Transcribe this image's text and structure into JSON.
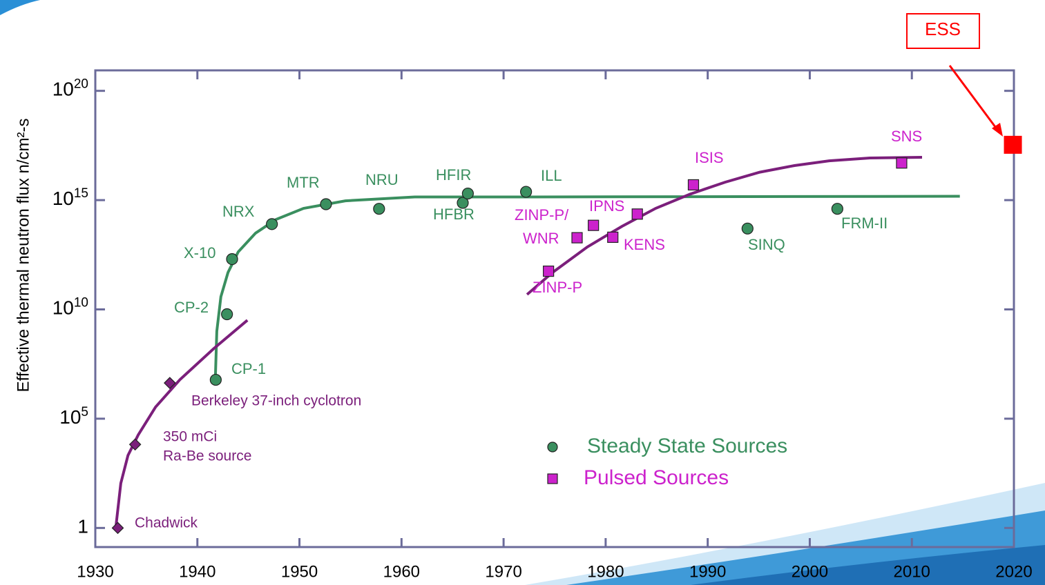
{
  "chart_data": {
    "type": "scatter",
    "ylabel": "Effective thermal neutron flux n/cm²-s",
    "xlim": [
      1930,
      2020
    ],
    "ylim": [
      0.1,
      1e+21
    ],
    "log_y": true,
    "xticks": [
      1930,
      1940,
      1950,
      1960,
      1970,
      1980,
      1990,
      2000,
      2010,
      2020
    ],
    "yticks": [
      1,
      {
        "value": 100000,
        "label": "10",
        "sup": "5"
      },
      {
        "value": 10000000000,
        "label": "10",
        "sup": "10"
      },
      {
        "value": 1000000000000000.0,
        "label": "10",
        "sup": "15"
      },
      {
        "value": 1e+20,
        "label": "10",
        "sup": "20"
      }
    ],
    "series": [
      {
        "name": "Steady State Sources",
        "color": "#3a8f5f",
        "marker": "circle",
        "x": [
          1941.8,
          1942.9,
          1943.4,
          1947.3,
          1952.6,
          1957.8,
          1966.0,
          1966.5,
          1972.2,
          1993.9,
          2002.7
        ],
        "values": [
          6000000,
          6000000000,
          2000000000000,
          80000000000000,
          650000000000000,
          400000000000000,
          750000000000000,
          2000000000000000,
          2400000000000000,
          50000000000000,
          400000000000000
        ],
        "labels": [
          "CP-1",
          "CP-2",
          "X-10",
          "NRX",
          "MTR",
          "NRU",
          "HFBR",
          "HFIR",
          "ILL",
          "SINQ",
          "FRM-II"
        ]
      },
      {
        "name": "Pulsed Sources",
        "color": "#cc22cc",
        "marker": "square",
        "x": [
          1974.4,
          1977.2,
          1978.8,
          1980.7,
          1983.1,
          1988.6,
          2009.0
        ],
        "values": [
          560000000000,
          19000000000000,
          70000000000000,
          20000000000000,
          230000000000000,
          5000000000000000,
          50000000000000000
        ],
        "labels": [
          "ZINP-P",
          "WNR",
          "ZINP-P/",
          "KENS",
          "IPNS",
          "ISIS",
          "SNS"
        ]
      },
      {
        "color": "#7b1f7b",
        "marker": "diamond",
        "x": [
          1932.2,
          1933.9,
          1937.3
        ],
        "values": [
          1,
          6600,
          4300000
        ],
        "labels": [
          "Chadwick",
          [
            "350 mCi",
            "Ra-Be source"
          ],
          "Berkeley 37-inch cyclotron"
        ]
      },
      {
        "color": "#ff0000",
        "marker": "square",
        "x": [
          2019.9
        ],
        "values": [
          340000000000000000
        ],
        "labels": [
          "ESS"
        ]
      }
    ],
    "fits": [
      {
        "color": "#3a8f5f",
        "x": [
          1941.77,
          1941.9,
          1942.3,
          1943.0,
          1944.0,
          1945.7,
          1947.7,
          1950.4,
          1954.5,
          1961.3,
          1972.8,
          2014.7
        ],
        "values": [
          9000000,
          1000000000,
          38000000000,
          490000000000,
          4300000000000,
          31000000000000,
          130000000000000,
          420000000000000,
          930000000000000,
          1400000000000000,
          1400000000000000,
          1500000000000000
        ]
      },
      {
        "color": "#7b1f7b",
        "x": [
          1932.0,
          1932.5,
          1933.2,
          1934.2,
          1935.9,
          1938.3,
          1941.6,
          1944.9
        ],
        "values": [
          1,
          110,
          2100,
          18000,
          340000,
          6200000,
          160000000,
          3200000000
        ]
      },
      {
        "color": "#7b1f7b",
        "x": [
          1972.3,
          1974.8,
          1978.2,
          1981.6,
          1984.9,
          1988.3,
          1991.7,
          1995.1,
          1998.5,
          2001.9,
          2005.9,
          2011.0
        ],
        "values": [
          48000000000,
          490000000000,
          7200000000000,
          63000000000000,
          420000000000000,
          1900000000000000,
          6600000000000000,
          19000000000000000,
          38000000000000000,
          63000000000000000,
          85000000000000000,
          91000000000000000
        ]
      }
    ]
  }
}
